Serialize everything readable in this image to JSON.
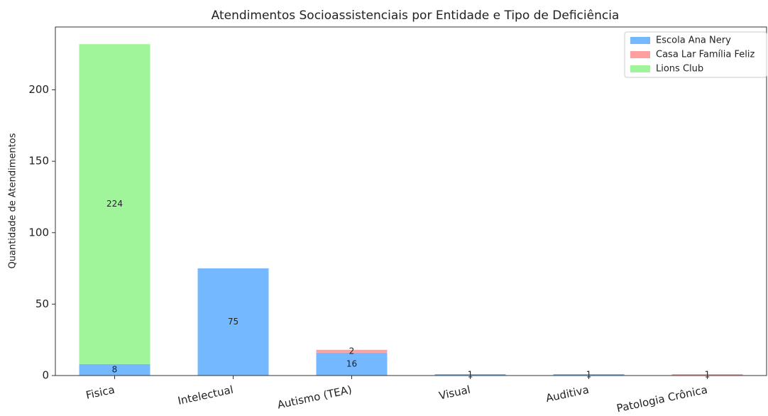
{
  "chart_data": {
    "type": "stacked_bar",
    "title": "Atendimentos Socioassistenciais por Entidade e Tipo de Deficiência",
    "ylabel": "Quantidade de Atendimentos",
    "categories": [
      "Fisica",
      "Intelectual",
      "Autismo (TEA)",
      "Visual",
      "Auditiva",
      "Patologia Crônica"
    ],
    "series": [
      {
        "name": "Escola Ana Nery",
        "color": "#74b9ff",
        "values": [
          8,
          75,
          16,
          1,
          1,
          0
        ]
      },
      {
        "name": "Casa Lar Família Feliz",
        "color": "#ff9f9f",
        "values": [
          0,
          0,
          2,
          0,
          0,
          1
        ]
      },
      {
        "name": "Lions Club",
        "color": "#a0f59a",
        "values": [
          224,
          0,
          0,
          0,
          0,
          0
        ]
      }
    ],
    "ylim": [
      0,
      244
    ],
    "yticks": [
      0,
      50,
      100,
      150,
      200
    ],
    "legend": "upper right"
  }
}
